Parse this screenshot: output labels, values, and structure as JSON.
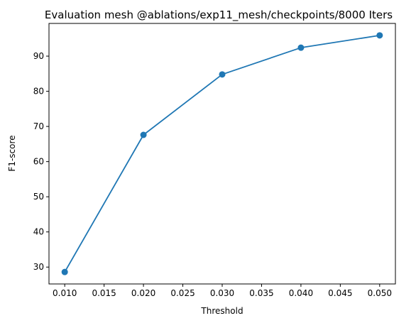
{
  "colors": {
    "series": "#1f77b4",
    "axes": "#000000",
    "background": "#ffffff"
  },
  "chart_data": {
    "type": "line",
    "title": "Evaluation mesh @ablations/exp11_mesh/checkpoints/8000 Iters",
    "xlabel": "Threshold",
    "ylabel": "F1-score",
    "x": [
      0.01,
      0.02,
      0.03,
      0.04,
      0.05
    ],
    "series": [
      {
        "values": [
          28.6,
          67.6,
          84.8,
          92.4,
          95.9
        ],
        "marker": "circle",
        "color": "#1f77b4"
      }
    ],
    "xlim": [
      0.008,
      0.052
    ],
    "ylim": [
      25.2,
      99.3
    ],
    "xticks": [
      0.01,
      0.015,
      0.02,
      0.025,
      0.03,
      0.035,
      0.04,
      0.045,
      0.05
    ],
    "xtick_labels": [
      "0.010",
      "0.015",
      "0.020",
      "0.025",
      "0.030",
      "0.035",
      "0.040",
      "0.045",
      "0.050"
    ],
    "yticks": [
      30,
      40,
      50,
      60,
      70,
      80,
      90
    ],
    "ytick_labels": [
      "30",
      "40",
      "50",
      "60",
      "70",
      "80",
      "90"
    ],
    "grid": false,
    "legend": "none"
  }
}
